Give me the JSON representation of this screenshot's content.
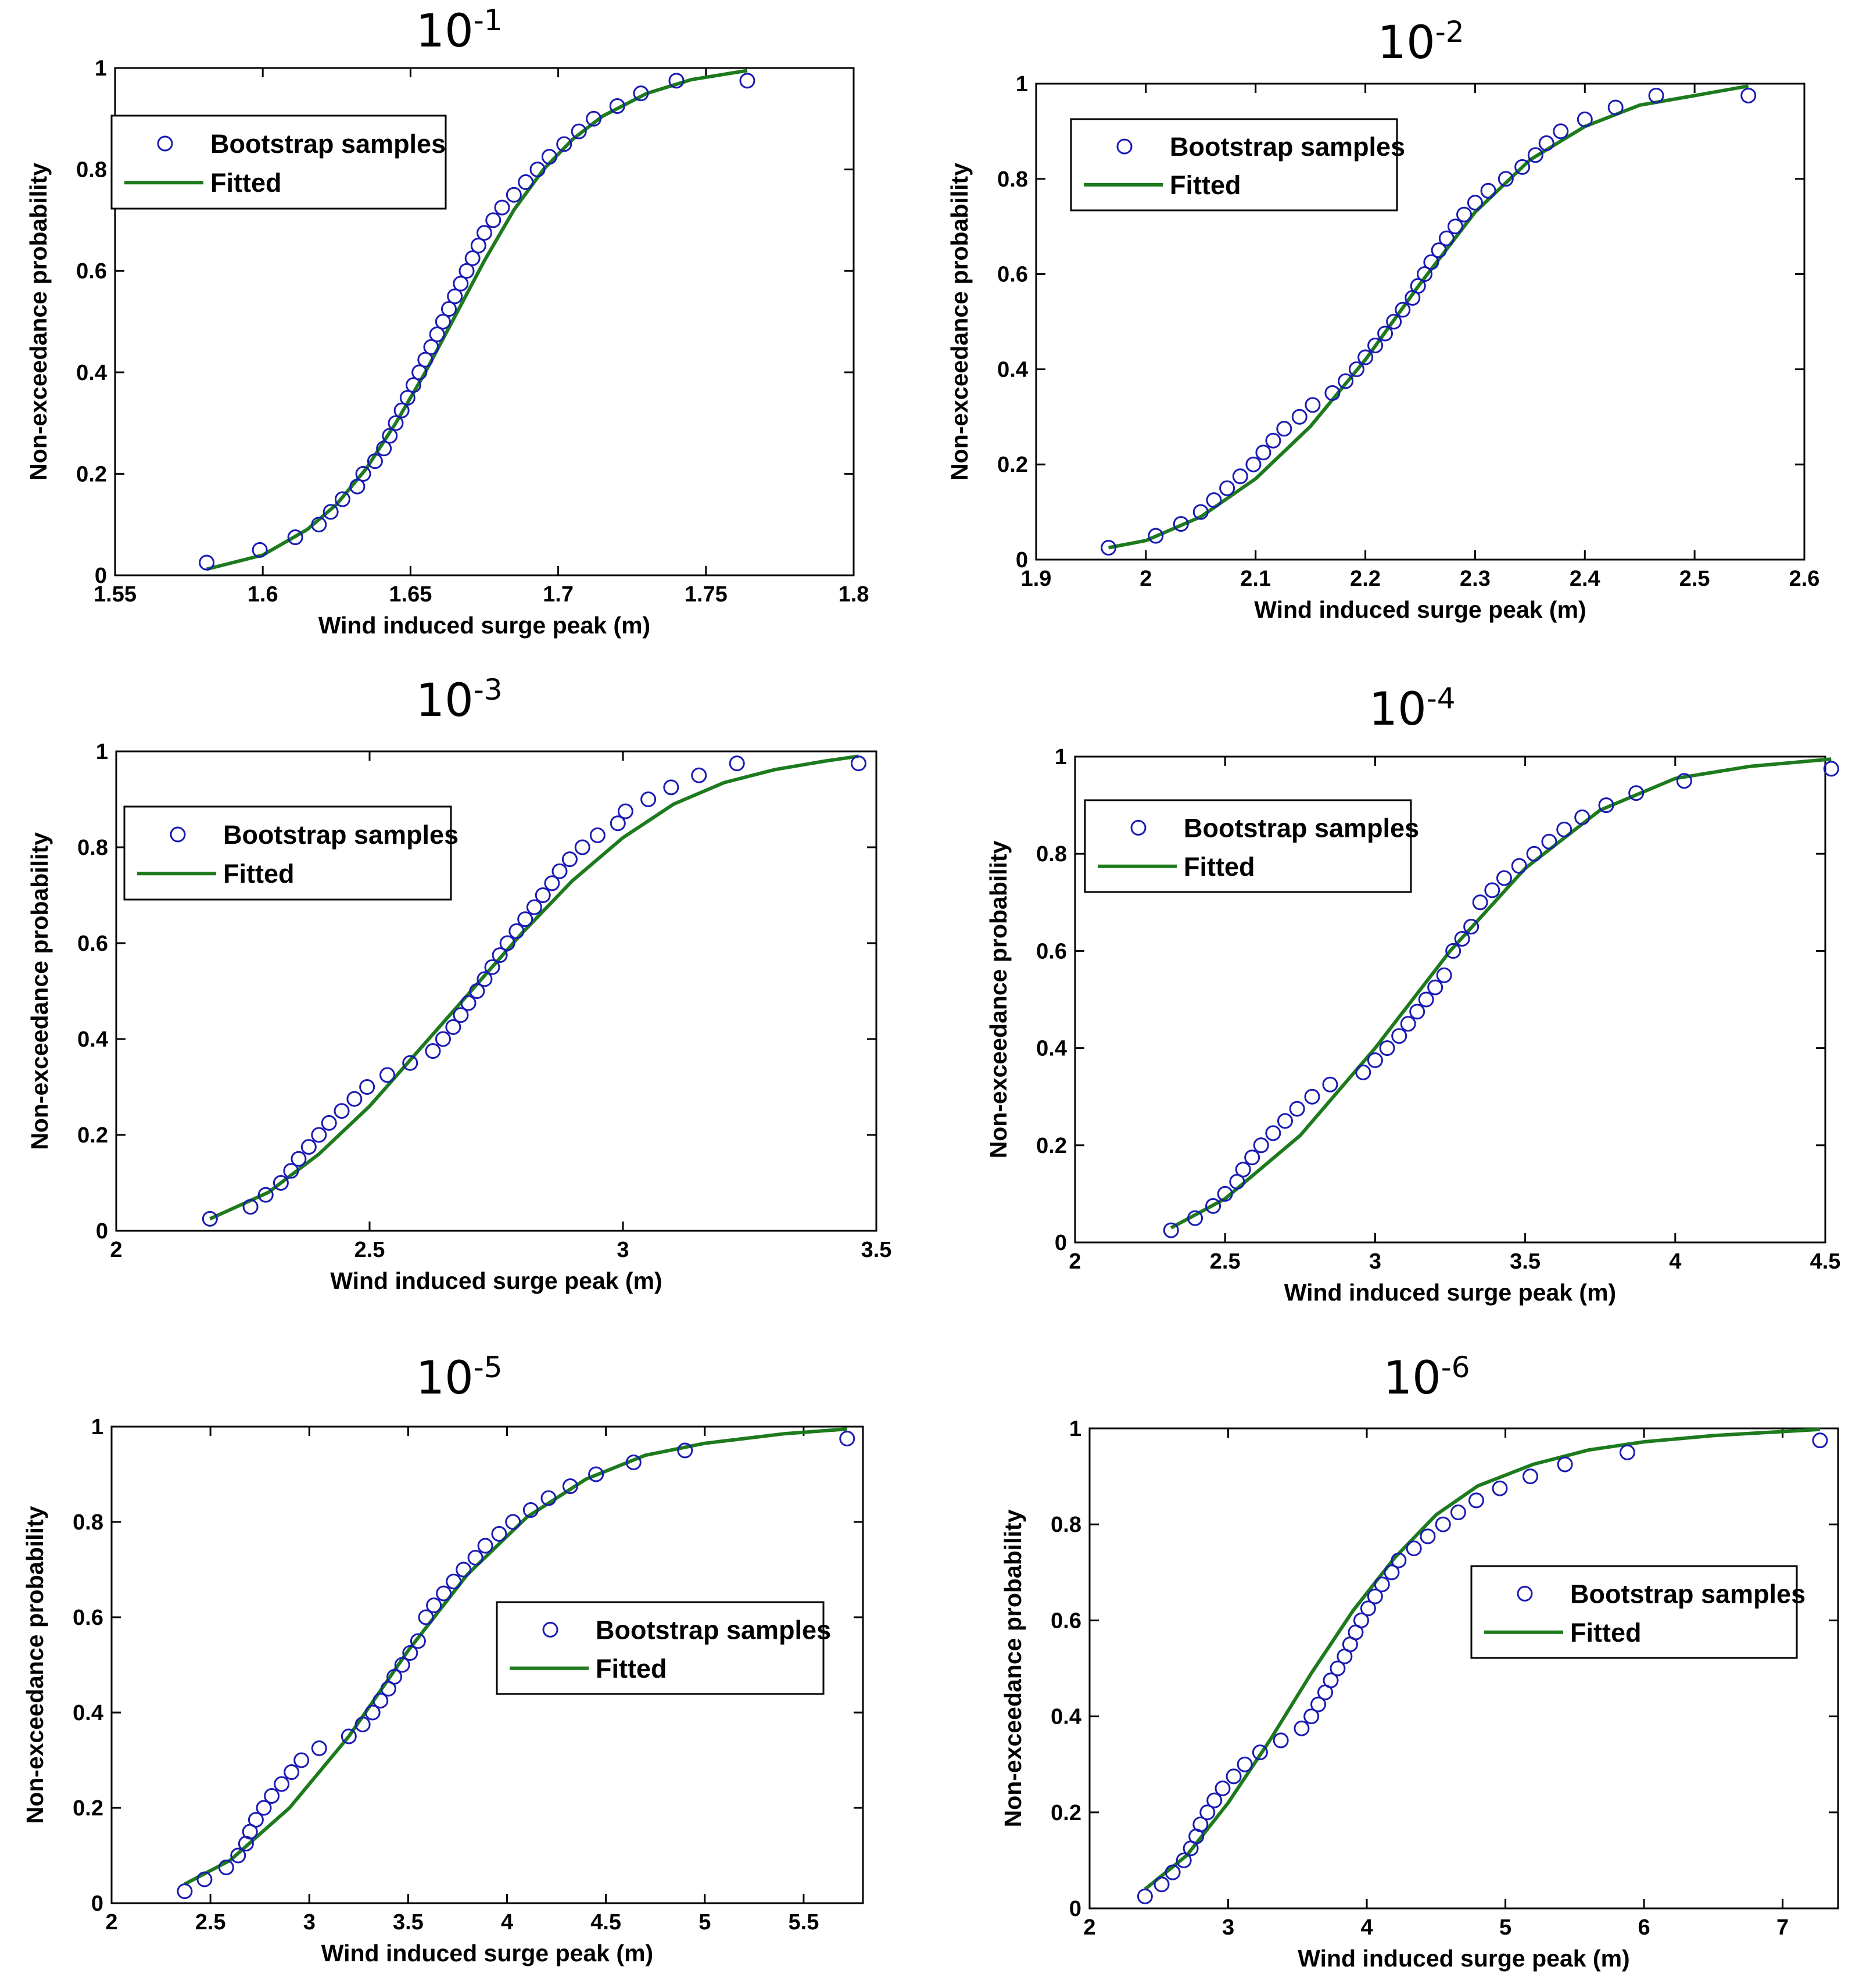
{
  "colors": {
    "marker": "#1a1ab4",
    "fit": "#1d7a1d",
    "axis": "#000000",
    "background": "#ffffff"
  },
  "legend_labels": {
    "samples": "Bootstrap samples",
    "fitted": "Fitted"
  },
  "chart_data": [
    {
      "type": "scatter",
      "title_base": "10",
      "title_exp": "-1",
      "xlabel": "Wind induced surge peak (m)",
      "ylabel": "Non-exceedance probability",
      "xlim": [
        1.55,
        1.8
      ],
      "ylim": [
        0,
        1
      ],
      "xticks": [
        "1.55",
        "1.6",
        "1.65",
        "1.7",
        "1.75",
        "1.8"
      ],
      "yticks": [
        "0",
        "0.2",
        "0.4",
        "0.6",
        "0.8",
        "1"
      ],
      "legend_position": "top-left",
      "series": [
        {
          "name": "Bootstrap samples",
          "type": "scatter",
          "x": [
            1.581,
            1.599,
            1.611,
            1.619,
            1.623,
            1.627,
            1.632,
            1.634,
            1.638,
            1.641,
            1.643,
            1.645,
            1.647,
            1.649,
            1.651,
            1.653,
            1.655,
            1.657,
            1.659,
            1.661,
            1.663,
            1.665,
            1.667,
            1.669,
            1.671,
            1.673,
            1.675,
            1.678,
            1.681,
            1.685,
            1.689,
            1.693,
            1.697,
            1.702,
            1.707,
            1.712,
            1.72,
            1.728,
            1.74,
            1.764
          ],
          "y": [
            0.025,
            0.05,
            0.075,
            0.1,
            0.125,
            0.15,
            0.175,
            0.2,
            0.225,
            0.25,
            0.275,
            0.3,
            0.325,
            0.35,
            0.375,
            0.4,
            0.425,
            0.45,
            0.475,
            0.5,
            0.525,
            0.55,
            0.575,
            0.6,
            0.625,
            0.65,
            0.675,
            0.7,
            0.725,
            0.75,
            0.775,
            0.8,
            0.825,
            0.85,
            0.875,
            0.9,
            0.925,
            0.95,
            0.975,
            0.975
          ]
        },
        {
          "name": "Fitted",
          "type": "line",
          "x": [
            1.581,
            1.6,
            1.615,
            1.625,
            1.635,
            1.645,
            1.655,
            1.665,
            1.675,
            1.685,
            1.695,
            1.705,
            1.715,
            1.73,
            1.745,
            1.764
          ],
          "y": [
            0.012,
            0.04,
            0.09,
            0.14,
            0.21,
            0.3,
            0.4,
            0.51,
            0.62,
            0.72,
            0.8,
            0.86,
            0.905,
            0.95,
            0.977,
            0.995
          ]
        }
      ]
    },
    {
      "type": "scatter",
      "title_base": "10",
      "title_exp": "-2",
      "xlabel": "Wind induced surge peak (m)",
      "ylabel": "Non-exceedance probability",
      "xlim": [
        1.9,
        2.6
      ],
      "ylim": [
        0,
        1
      ],
      "xticks": [
        "1.9",
        "2",
        "2.1",
        "2.2",
        "2.3",
        "2.4",
        "2.5",
        "2.6"
      ],
      "yticks": [
        "0",
        "0.2",
        "0.4",
        "0.6",
        "0.8",
        "1"
      ],
      "legend_position": "top-left",
      "series": [
        {
          "name": "Bootstrap samples",
          "type": "scatter",
          "x": [
            1.966,
            2.009,
            2.032,
            2.05,
            2.062,
            2.074,
            2.086,
            2.098,
            2.107,
            2.116,
            2.126,
            2.14,
            2.152,
            2.17,
            2.182,
            2.192,
            2.2,
            2.209,
            2.218,
            2.226,
            2.234,
            2.243,
            2.248,
            2.254,
            2.26,
            2.267,
            2.274,
            2.282,
            2.29,
            2.3,
            2.312,
            2.328,
            2.343,
            2.355,
            2.365,
            2.378,
            2.4,
            2.428,
            2.465,
            2.549
          ],
          "y": [
            0.025,
            0.05,
            0.075,
            0.1,
            0.125,
            0.15,
            0.175,
            0.2,
            0.225,
            0.25,
            0.275,
            0.3,
            0.325,
            0.35,
            0.375,
            0.4,
            0.425,
            0.45,
            0.475,
            0.5,
            0.525,
            0.55,
            0.575,
            0.6,
            0.625,
            0.65,
            0.675,
            0.7,
            0.725,
            0.75,
            0.775,
            0.8,
            0.825,
            0.85,
            0.875,
            0.9,
            0.925,
            0.95,
            0.975,
            0.975
          ]
        },
        {
          "name": "Fitted",
          "type": "line",
          "x": [
            1.966,
            2.0,
            2.05,
            2.1,
            2.15,
            2.2,
            2.25,
            2.3,
            2.35,
            2.4,
            2.45,
            2.5,
            2.549
          ],
          "y": [
            0.025,
            0.04,
            0.09,
            0.17,
            0.28,
            0.42,
            0.58,
            0.73,
            0.84,
            0.91,
            0.955,
            0.975,
            0.995
          ]
        }
      ]
    },
    {
      "type": "scatter",
      "title_base": "10",
      "title_exp": "-3",
      "xlabel": "Wind induced surge peak (m)",
      "ylabel": "Non-exceedance probability",
      "xlim": [
        2,
        3.5
      ],
      "ylim": [
        0,
        1
      ],
      "xticks": [
        "2",
        "2.5",
        "3",
        "3.5"
      ],
      "yticks": [
        "0",
        "0.2",
        "0.4",
        "0.6",
        "0.8",
        "1"
      ],
      "legend_position": "top-left",
      "series": [
        {
          "name": "Bootstrap samples",
          "type": "scatter",
          "x": [
            2.185,
            2.265,
            2.295,
            2.325,
            2.345,
            2.36,
            2.38,
            2.4,
            2.42,
            2.445,
            2.47,
            2.495,
            2.535,
            2.58,
            2.625,
            2.645,
            2.665,
            2.68,
            2.695,
            2.712,
            2.727,
            2.742,
            2.757,
            2.772,
            2.79,
            2.807,
            2.825,
            2.842,
            2.86,
            2.875,
            2.895,
            2.92,
            2.95,
            2.99,
            3.005,
            3.05,
            3.095,
            3.15,
            3.225,
            3.465
          ],
          "y": [
            0.025,
            0.05,
            0.075,
            0.1,
            0.125,
            0.15,
            0.175,
            0.2,
            0.225,
            0.25,
            0.275,
            0.3,
            0.325,
            0.35,
            0.375,
            0.4,
            0.425,
            0.45,
            0.475,
            0.5,
            0.525,
            0.55,
            0.575,
            0.6,
            0.625,
            0.65,
            0.675,
            0.7,
            0.725,
            0.75,
            0.775,
            0.8,
            0.825,
            0.85,
            0.875,
            0.9,
            0.925,
            0.95,
            0.975,
            0.975
          ]
        },
        {
          "name": "Fitted",
          "type": "line",
          "x": [
            2.185,
            2.3,
            2.4,
            2.5,
            2.6,
            2.7,
            2.8,
            2.9,
            3.0,
            3.1,
            3.2,
            3.3,
            3.4,
            3.465
          ],
          "y": [
            0.025,
            0.08,
            0.16,
            0.26,
            0.38,
            0.5,
            0.62,
            0.73,
            0.82,
            0.89,
            0.935,
            0.962,
            0.98,
            0.99
          ]
        }
      ]
    },
    {
      "type": "scatter",
      "title_base": "10",
      "title_exp": "-4",
      "xlabel": "Wind induced surge peak (m)",
      "ylabel": "Non-exceedance probability",
      "xlim": [
        2,
        4.5
      ],
      "ylim": [
        0,
        1
      ],
      "xticks": [
        "2",
        "2.5",
        "3",
        "3.5",
        "4",
        "4.5"
      ],
      "yticks": [
        "0",
        "0.2",
        "0.4",
        "0.6",
        "0.8",
        "1"
      ],
      "legend_position": "top-left",
      "series": [
        {
          "name": "Bootstrap samples",
          "type": "scatter",
          "x": [
            2.32,
            2.4,
            2.46,
            2.5,
            2.54,
            2.56,
            2.59,
            2.62,
            2.66,
            2.7,
            2.74,
            2.79,
            2.85,
            2.96,
            3.0,
            3.04,
            3.08,
            3.11,
            3.14,
            3.17,
            3.2,
            3.23,
            3.26,
            3.29,
            3.32,
            3.35,
            3.39,
            3.43,
            3.48,
            3.53,
            3.58,
            3.63,
            3.69,
            3.77,
            3.87,
            4.03,
            4.52
          ],
          "y": [
            0.025,
            0.05,
            0.075,
            0.1,
            0.125,
            0.15,
            0.175,
            0.2,
            0.225,
            0.25,
            0.275,
            0.3,
            0.325,
            0.35,
            0.375,
            0.4,
            0.425,
            0.45,
            0.475,
            0.5,
            0.525,
            0.55,
            0.6,
            0.625,
            0.65,
            0.7,
            0.725,
            0.75,
            0.775,
            0.8,
            0.825,
            0.85,
            0.875,
            0.9,
            0.925,
            0.95,
            0.975
          ]
        },
        {
          "name": "Fitted",
          "type": "line",
          "x": [
            2.32,
            2.5,
            2.75,
            3.0,
            3.25,
            3.5,
            3.75,
            4.0,
            4.25,
            4.52
          ],
          "y": [
            0.03,
            0.09,
            0.22,
            0.4,
            0.6,
            0.77,
            0.89,
            0.955,
            0.98,
            0.995
          ]
        }
      ]
    },
    {
      "type": "scatter",
      "title_base": "10",
      "title_exp": "-5",
      "xlabel": "Wind induced surge peak (m)",
      "ylabel": "Non-exceedance probability",
      "xlim": [
        2,
        5.8
      ],
      "ylim": [
        0,
        1
      ],
      "xticks": [
        "2",
        "2.5",
        "3",
        "3.5",
        "4",
        "4.5",
        "5",
        "5.5"
      ],
      "yticks": [
        "0",
        "0.2",
        "0.4",
        "0.6",
        "0.8",
        "1"
      ],
      "legend_position": "center-right",
      "series": [
        {
          "name": "Bootstrap samples",
          "type": "scatter",
          "x": [
            2.37,
            2.47,
            2.58,
            2.64,
            2.68,
            2.7,
            2.73,
            2.77,
            2.81,
            2.86,
            2.91,
            2.96,
            3.05,
            3.2,
            3.27,
            3.32,
            3.36,
            3.4,
            3.43,
            3.47,
            3.51,
            3.55,
            3.59,
            3.63,
            3.68,
            3.73,
            3.78,
            3.84,
            3.89,
            3.96,
            4.03,
            4.12,
            4.21,
            4.32,
            4.45,
            4.64,
            4.9,
            5.72
          ],
          "y": [
            0.025,
            0.05,
            0.075,
            0.1,
            0.125,
            0.15,
            0.175,
            0.2,
            0.225,
            0.25,
            0.275,
            0.3,
            0.325,
            0.35,
            0.375,
            0.4,
            0.425,
            0.45,
            0.475,
            0.5,
            0.525,
            0.55,
            0.6,
            0.625,
            0.65,
            0.675,
            0.7,
            0.725,
            0.75,
            0.775,
            0.8,
            0.825,
            0.85,
            0.875,
            0.9,
            0.925,
            0.95,
            0.975
          ]
        },
        {
          "name": "Fitted",
          "type": "line",
          "x": [
            2.37,
            2.6,
            2.9,
            3.2,
            3.5,
            3.8,
            4.1,
            4.4,
            4.7,
            5.0,
            5.4,
            5.72
          ],
          "y": [
            0.04,
            0.09,
            0.2,
            0.35,
            0.53,
            0.69,
            0.81,
            0.89,
            0.94,
            0.965,
            0.985,
            0.995
          ]
        }
      ]
    },
    {
      "type": "scatter",
      "title_base": "10",
      "title_exp": "-6",
      "xlabel": "Wind induced surge peak (m)",
      "ylabel": "Non-exceedance probability",
      "xlim": [
        2,
        7.4
      ],
      "ylim": [
        0,
        1
      ],
      "xticks": [
        "2",
        "3",
        "4",
        "5",
        "6",
        "7"
      ],
      "yticks": [
        "0",
        "0.2",
        "0.4",
        "0.6",
        "0.8",
        "1"
      ],
      "legend_position": "center-right",
      "series": [
        {
          "name": "Bootstrap samples",
          "type": "scatter",
          "x": [
            2.4,
            2.52,
            2.6,
            2.68,
            2.73,
            2.77,
            2.8,
            2.85,
            2.9,
            2.96,
            3.04,
            3.12,
            3.23,
            3.38,
            3.53,
            3.6,
            3.65,
            3.7,
            3.74,
            3.79,
            3.84,
            3.88,
            3.92,
            3.96,
            4.01,
            4.06,
            4.11,
            4.18,
            4.23,
            4.34,
            4.44,
            4.55,
            4.66,
            4.79,
            4.96,
            5.18,
            5.43,
            5.88,
            7.27
          ],
          "y": [
            0.025,
            0.05,
            0.075,
            0.1,
            0.125,
            0.15,
            0.175,
            0.2,
            0.225,
            0.25,
            0.275,
            0.3,
            0.325,
            0.35,
            0.375,
            0.4,
            0.425,
            0.45,
            0.475,
            0.5,
            0.525,
            0.55,
            0.575,
            0.6,
            0.625,
            0.65,
            0.675,
            0.7,
            0.725,
            0.75,
            0.775,
            0.8,
            0.825,
            0.85,
            0.875,
            0.9,
            0.925,
            0.95,
            0.975
          ]
        },
        {
          "name": "Fitted",
          "type": "line",
          "x": [
            2.4,
            2.7,
            3.0,
            3.3,
            3.6,
            3.9,
            4.2,
            4.5,
            4.8,
            5.2,
            5.6,
            6.0,
            6.5,
            7.27
          ],
          "y": [
            0.04,
            0.11,
            0.22,
            0.35,
            0.49,
            0.62,
            0.73,
            0.82,
            0.88,
            0.925,
            0.955,
            0.972,
            0.985,
            0.998
          ]
        }
      ]
    }
  ]
}
